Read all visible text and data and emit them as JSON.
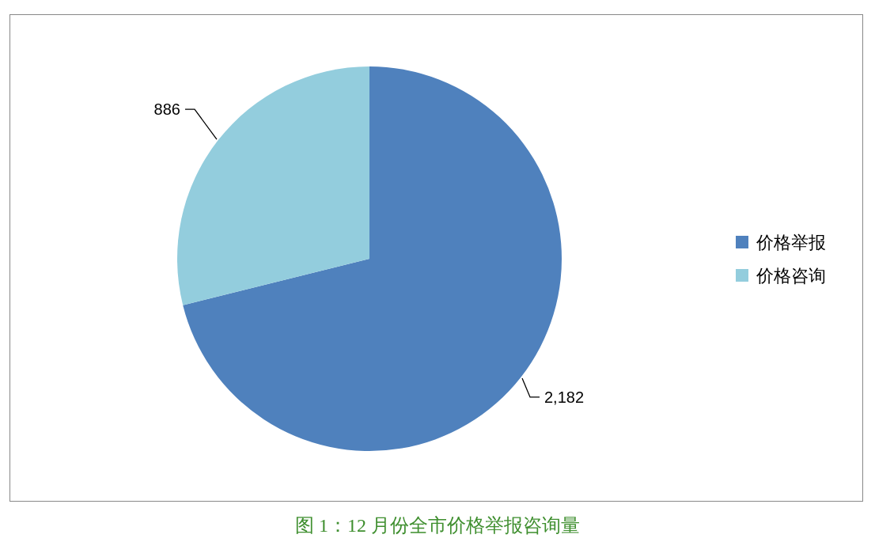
{
  "chart_data": {
    "type": "pie",
    "title": "图 1：12 月份全市价格举报咨询量",
    "categories": [
      "价格举报",
      "价格咨询"
    ],
    "values": [
      2182,
      886
    ],
    "value_labels": [
      "2,182",
      "886"
    ],
    "colors": [
      "#4f81bd",
      "#93cddd"
    ],
    "legend": "right"
  }
}
